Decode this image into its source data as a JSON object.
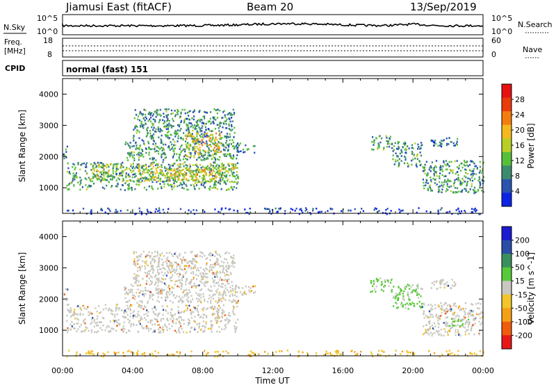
{
  "header": {
    "title": "Jiamusi East (fitACF)",
    "beam": "Beam 20",
    "date": "13/Sep/2019"
  },
  "noise_panel": {
    "left_label": "N.Sky",
    "right_label": "N.Search",
    "tick_top": "10^5",
    "tick_bottom": "10^0"
  },
  "freq_panel": {
    "left_label_line1": "Freq.",
    "left_label_line2": "[MHz]",
    "left_ticks": [
      "18",
      "8"
    ],
    "right_ticks": [
      "60",
      "0"
    ],
    "right_label": "Nave"
  },
  "cpid": {
    "label": "CPID",
    "program": "normal (fast) 151"
  },
  "axes": {
    "ylabel": "Slant Range [km]",
    "xlabel": "Time UT",
    "y_ticks": [
      "1000",
      "2000",
      "3000",
      "4000"
    ],
    "x_ticks": [
      "00:00",
      "04:00",
      "08:00",
      "12:00",
      "16:00",
      "20:00",
      "00:00"
    ]
  },
  "colors": {
    "power": [
      "#0b24e6",
      "#2a54b0",
      "#3d8a6e",
      "#56bf3a",
      "#b9cf28",
      "#f4b91e",
      "#f37c0f",
      "#ea3b0b",
      "#e61212"
    ],
    "velocity": [
      "#1b1bd0",
      "#2a4da8",
      "#3b8e5e",
      "#58c93a",
      "#c8c8c0",
      "#f2c52a",
      "#f4a016",
      "#f05c0c",
      "#e81818"
    ],
    "ground": "#f0b030"
  },
  "chart_data": [
    {
      "type": "heatmap",
      "panel": "power",
      "ylabel": "Slant Range [km]",
      "xlabel": "",
      "x_range_hours": [
        0,
        24
      ],
      "y_range_km": [
        180,
        4500
      ],
      "colorbar": {
        "label": "Power [dB]",
        "ticks": [
          "4",
          "8",
          "12",
          "16",
          "20",
          "24",
          "28"
        ],
        "range": [
          0,
          30
        ]
      },
      "echo_regions": [
        {
          "t0": 0.0,
          "t1": 0.25,
          "r0": 1950,
          "r1": 2350,
          "level": 0.25
        },
        {
          "t0": 0.2,
          "t1": 10.0,
          "r0": 950,
          "r1": 1850,
          "level": 0.3
        },
        {
          "t0": 1.5,
          "t1": 10.0,
          "r0": 1200,
          "r1": 1800,
          "level": 0.45
        },
        {
          "t0": 5.0,
          "t1": 9.0,
          "r0": 1300,
          "r1": 1650,
          "level": 0.6
        },
        {
          "t0": 3.5,
          "t1": 10.0,
          "r0": 1900,
          "r1": 2500,
          "level": 0.3
        },
        {
          "t0": 4.0,
          "t1": 9.8,
          "r0": 2500,
          "r1": 3550,
          "level": 0.28
        },
        {
          "t0": 7.0,
          "t1": 9.0,
          "r0": 2000,
          "r1": 2800,
          "level": 0.55
        },
        {
          "t0": 9.8,
          "t1": 11.0,
          "r0": 2150,
          "r1": 2450,
          "level": 0.2
        },
        {
          "t0": 17.5,
          "t1": 18.8,
          "r0": 2250,
          "r1": 2700,
          "level": 0.3
        },
        {
          "t0": 18.8,
          "t1": 20.5,
          "r0": 1700,
          "r1": 2500,
          "level": 0.3
        },
        {
          "t0": 20.5,
          "t1": 24.0,
          "r0": 850,
          "r1": 1900,
          "level": 0.3
        },
        {
          "t0": 21.0,
          "t1": 22.5,
          "r0": 2350,
          "r1": 2650,
          "level": 0.2
        },
        {
          "t0": 0.0,
          "t1": 24.0,
          "r0": 180,
          "r1": 380,
          "level": 0.1
        }
      ]
    },
    {
      "type": "heatmap",
      "panel": "velocity",
      "ylabel": "Slant Range [km]",
      "xlabel": "Time UT",
      "x_range_hours": [
        0,
        24
      ],
      "y_range_km": [
        180,
        4500
      ],
      "colorbar": {
        "label": "Velocity [m s^-1]",
        "ticks": [
          "200",
          "100",
          "50",
          "15",
          "-15",
          "-50",
          "-100",
          "-200"
        ],
        "range": [
          -250,
          250
        ]
      },
      "echo_regions": [
        {
          "t0": 0.0,
          "t1": 0.25,
          "r0": 1950,
          "r1": 2350,
          "level": 0.0
        },
        {
          "t0": 0.2,
          "t1": 10.0,
          "r0": 950,
          "r1": 1850,
          "level": 0.0
        },
        {
          "t0": 3.5,
          "t1": 10.0,
          "r0": 1900,
          "r1": 2500,
          "level": 0.0
        },
        {
          "t0": 4.0,
          "t1": 9.8,
          "r0": 2500,
          "r1": 3550,
          "level": 0.0
        },
        {
          "t0": 9.8,
          "t1": 11.0,
          "r0": 2150,
          "r1": 2450,
          "level": 0.0
        },
        {
          "t0": 17.5,
          "t1": 18.8,
          "r0": 2250,
          "r1": 2700,
          "level": 30
        },
        {
          "t0": 18.8,
          "t1": 20.5,
          "r0": 1700,
          "r1": 2500,
          "level": 30
        },
        {
          "t0": 20.5,
          "t1": 24.0,
          "r0": 850,
          "r1": 1900,
          "level": 0.0
        },
        {
          "t0": 22.0,
          "t1": 23.2,
          "r0": 1100,
          "r1": 1400,
          "level": 40
        },
        {
          "t0": 21.0,
          "t1": 22.5,
          "r0": 2350,
          "r1": 2650,
          "level": 0.0
        },
        {
          "t0": 0.0,
          "t1": 24.0,
          "r0": 180,
          "r1": 380,
          "level": -30
        }
      ]
    }
  ]
}
